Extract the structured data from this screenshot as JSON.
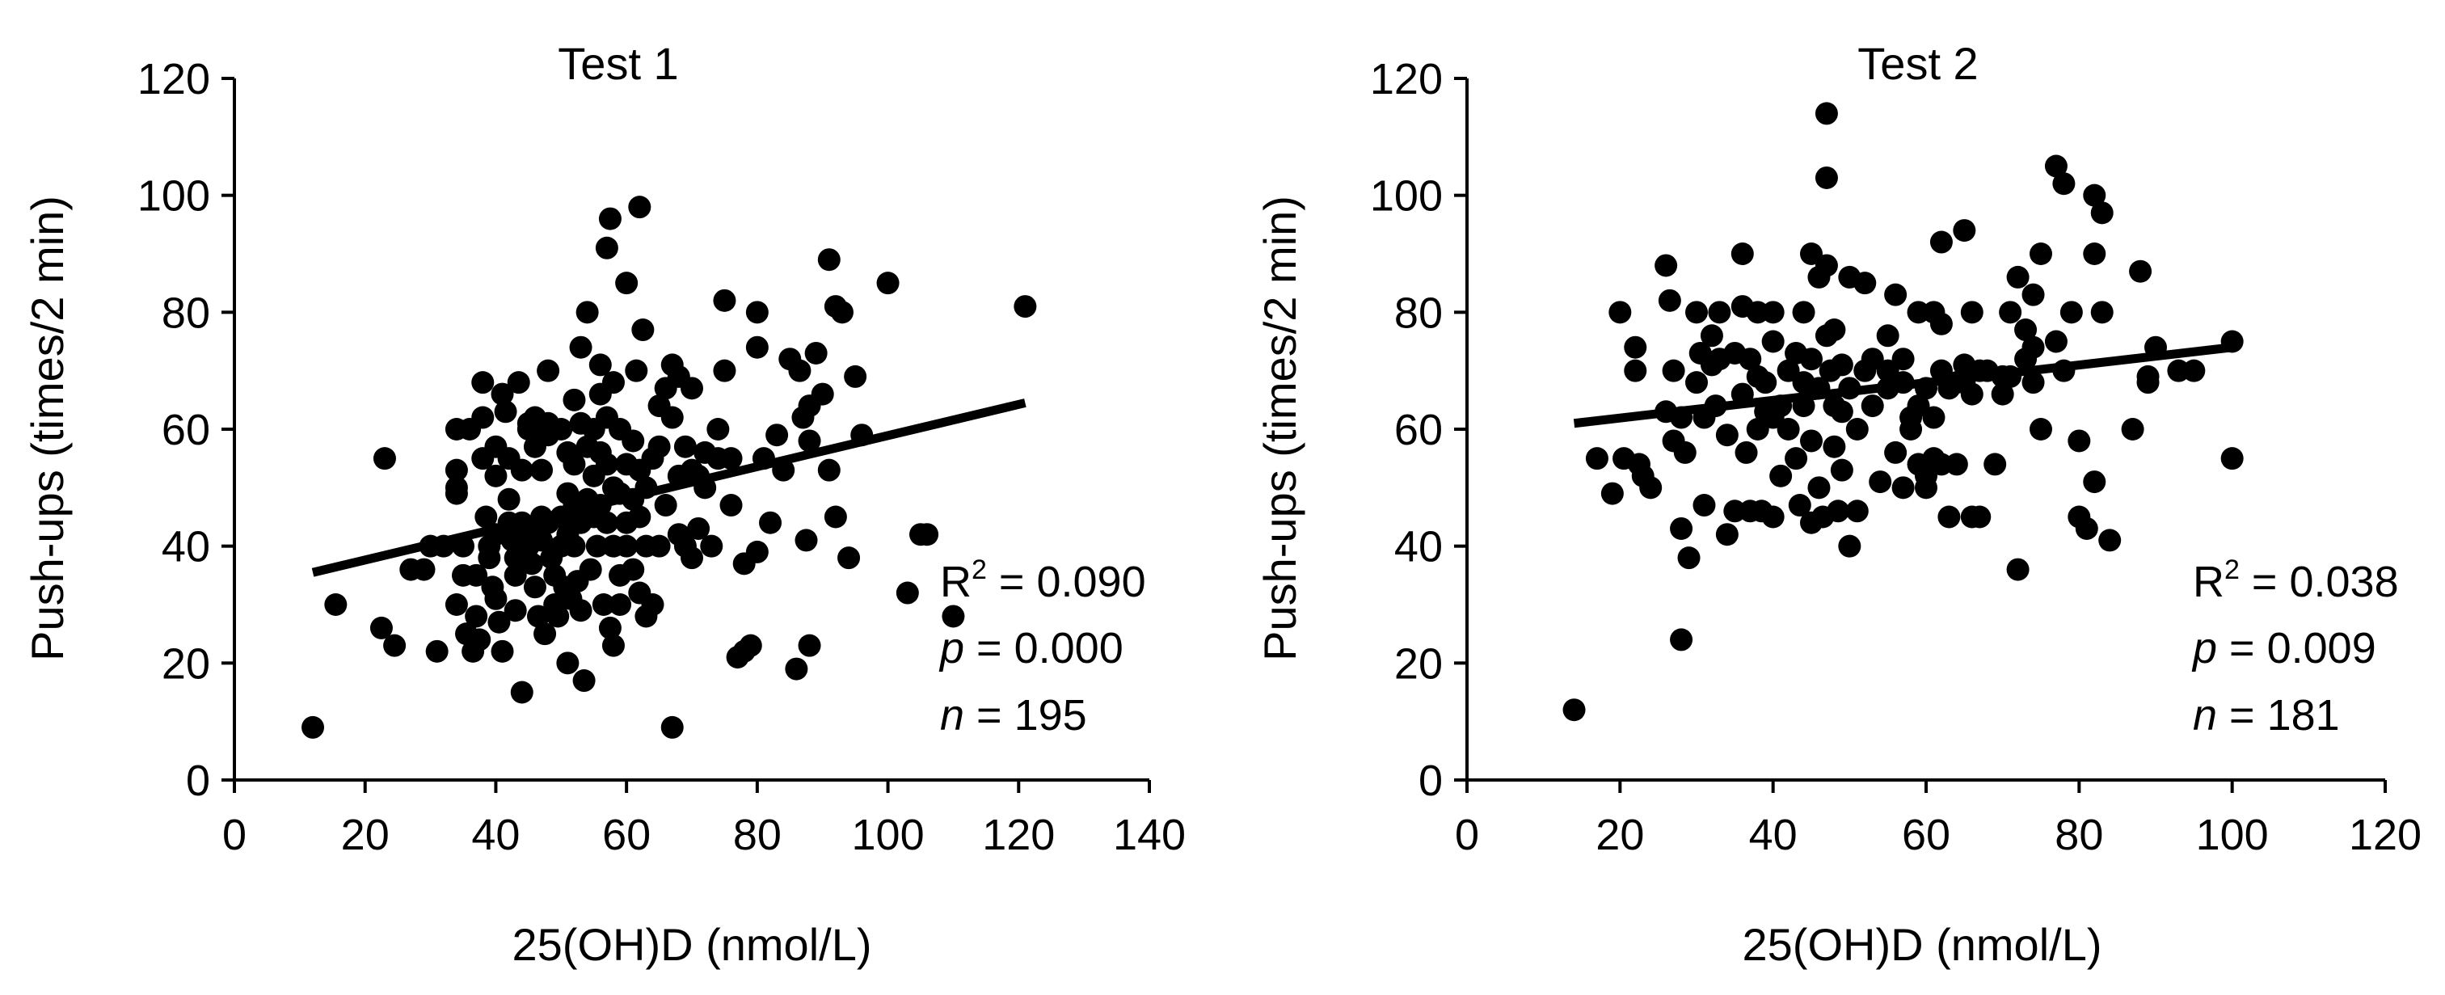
{
  "chart_data": [
    {
      "type": "scatter",
      "title": "Test 1",
      "xlabel": "25(OH)D (nmol/L)",
      "ylabel": "Push-ups (times/2 min)",
      "xlim": [
        0,
        140
      ],
      "ylim": [
        0,
        120
      ],
      "xticks": [
        0,
        20,
        40,
        60,
        80,
        100,
        120,
        140
      ],
      "yticks": [
        0,
        20,
        40,
        60,
        80,
        100,
        120
      ],
      "xtick_labels": [
        "0",
        "20",
        "40",
        "60",
        "80",
        "100",
        "120",
        "140"
      ],
      "ytick_labels": [
        "0",
        "20",
        "40",
        "60",
        "80",
        "100",
        "120"
      ],
      "trendline": {
        "x": [
          12,
          121
        ],
        "y": [
          35.5,
          64.5
        ]
      },
      "stats": {
        "r2_label": "R",
        "r2_sup": "2",
        "r2_value": " = 0.090",
        "p_label": "p",
        "p_value": " = 0.000",
        "n_label": "n",
        "n_value": " = 195"
      },
      "points": [
        [
          12,
          9
        ],
        [
          15.5,
          30
        ],
        [
          23,
          55
        ],
        [
          22.5,
          26
        ],
        [
          24.5,
          23
        ],
        [
          27,
          36
        ],
        [
          29,
          36
        ],
        [
          30,
          40
        ],
        [
          31,
          22
        ],
        [
          32,
          40
        ],
        [
          34,
          60
        ],
        [
          34,
          53
        ],
        [
          34,
          50
        ],
        [
          34,
          49
        ],
        [
          34,
          30
        ],
        [
          35,
          40
        ],
        [
          35,
          35
        ],
        [
          35.5,
          25
        ],
        [
          36,
          60
        ],
        [
          36.5,
          22
        ],
        [
          37,
          35
        ],
        [
          37,
          28
        ],
        [
          37.5,
          24
        ],
        [
          38,
          68
        ],
        [
          38,
          62
        ],
        [
          38,
          55
        ],
        [
          38.5,
          45
        ],
        [
          39,
          40
        ],
        [
          39,
          38
        ],
        [
          39.5,
          33
        ],
        [
          40,
          57
        ],
        [
          40,
          52
        ],
        [
          40,
          42
        ],
        [
          40,
          31
        ],
        [
          40.5,
          27
        ],
        [
          41,
          22
        ],
        [
          41,
          66
        ],
        [
          41.5,
          63
        ],
        [
          42,
          55
        ],
        [
          42,
          48
        ],
        [
          42,
          44
        ],
        [
          42.5,
          41
        ],
        [
          43,
          38
        ],
        [
          43,
          35
        ],
        [
          43,
          29
        ],
        [
          43.5,
          68
        ],
        [
          44,
          53
        ],
        [
          44,
          44
        ],
        [
          44,
          15
        ],
        [
          45,
          61
        ],
        [
          45,
          60
        ],
        [
          45,
          43
        ],
        [
          45,
          40
        ],
        [
          45.5,
          37
        ],
        [
          46,
          62
        ],
        [
          46,
          57
        ],
        [
          46,
          33
        ],
        [
          46.5,
          28
        ],
        [
          47,
          53
        ],
        [
          47,
          45
        ],
        [
          47,
          41
        ],
        [
          47.5,
          25
        ],
        [
          48,
          70
        ],
        [
          48,
          61
        ],
        [
          48,
          59
        ],
        [
          48,
          44
        ],
        [
          48.5,
          38
        ],
        [
          49,
          35
        ],
        [
          49,
          30
        ],
        [
          49.5,
          28
        ],
        [
          50,
          60
        ],
        [
          50,
          45
        ],
        [
          50,
          40
        ],
        [
          50.5,
          33
        ],
        [
          51,
          56
        ],
        [
          51,
          49
        ],
        [
          51,
          42
        ],
        [
          51,
          20
        ],
        [
          51.5,
          31
        ],
        [
          52,
          65
        ],
        [
          52,
          54
        ],
        [
          52,
          47
        ],
        [
          52,
          40
        ],
        [
          52.5,
          34
        ],
        [
          53,
          74
        ],
        [
          53,
          61
        ],
        [
          53,
          44
        ],
        [
          53,
          29
        ],
        [
          53.5,
          17
        ],
        [
          54,
          80
        ],
        [
          54,
          57
        ],
        [
          54,
          48
        ],
        [
          54.5,
          36
        ],
        [
          55,
          60
        ],
        [
          55,
          52
        ],
        [
          55,
          45
        ],
        [
          55.5,
          40
        ],
        [
          56,
          66
        ],
        [
          56,
          71
        ],
        [
          56,
          56
        ],
        [
          56,
          47
        ],
        [
          56.5,
          30
        ],
        [
          57,
          91
        ],
        [
          57,
          62
        ],
        [
          57,
          54
        ],
        [
          57,
          44
        ],
        [
          57.5,
          96
        ],
        [
          57.5,
          26
        ],
        [
          58,
          68
        ],
        [
          58,
          50
        ],
        [
          58,
          40
        ],
        [
          58,
          23
        ],
        [
          59,
          60
        ],
        [
          59,
          49
        ],
        [
          59,
          35
        ],
        [
          59,
          30
        ],
        [
          60,
          85
        ],
        [
          60,
          54
        ],
        [
          60,
          44
        ],
        [
          60,
          40
        ],
        [
          61,
          58
        ],
        [
          61,
          48
        ],
        [
          61,
          36
        ],
        [
          61.5,
          70
        ],
        [
          62,
          98
        ],
        [
          62,
          53
        ],
        [
          62,
          45
        ],
        [
          62,
          32
        ],
        [
          62.5,
          77
        ],
        [
          63,
          50
        ],
        [
          63,
          40
        ],
        [
          63,
          28
        ],
        [
          64,
          55
        ],
        [
          64,
          30
        ],
        [
          65,
          64
        ],
        [
          65,
          57
        ],
        [
          65,
          40
        ],
        [
          66,
          67
        ],
        [
          66,
          47
        ],
        [
          67,
          71
        ],
        [
          67,
          62
        ],
        [
          67,
          9
        ],
        [
          68,
          69
        ],
        [
          68,
          52
        ],
        [
          68,
          42
        ],
        [
          69,
          57
        ],
        [
          69,
          40
        ],
        [
          70,
          53
        ],
        [
          70,
          67
        ],
        [
          70,
          38
        ],
        [
          71,
          52
        ],
        [
          71,
          43
        ],
        [
          72,
          56
        ],
        [
          72,
          50
        ],
        [
          73,
          40
        ],
        [
          74,
          60
        ],
        [
          74,
          55
        ],
        [
          75,
          82
        ],
        [
          75,
          70
        ],
        [
          76,
          55
        ],
        [
          76,
          47
        ],
        [
          77,
          21
        ],
        [
          78,
          37
        ],
        [
          78,
          22
        ],
        [
          79,
          23
        ],
        [
          80,
          80
        ],
        [
          80,
          74
        ],
        [
          80,
          39
        ],
        [
          81,
          55
        ],
        [
          82,
          44
        ],
        [
          83,
          59
        ],
        [
          84,
          53
        ],
        [
          85,
          72
        ],
        [
          86,
          19
        ],
        [
          86.5,
          70
        ],
        [
          87,
          62
        ],
        [
          87.5,
          41
        ],
        [
          88,
          64
        ],
        [
          88,
          58
        ],
        [
          88,
          23
        ],
        [
          89,
          73
        ],
        [
          90,
          66
        ],
        [
          91,
          89
        ],
        [
          91,
          53
        ],
        [
          92,
          45
        ],
        [
          92,
          81
        ],
        [
          93,
          80
        ],
        [
          94,
          38
        ],
        [
          95,
          69
        ],
        [
          96,
          59
        ],
        [
          100,
          85
        ],
        [
          103,
          32
        ],
        [
          105,
          42
        ],
        [
          106,
          42
        ],
        [
          110,
          28
        ],
        [
          121,
          81
        ]
      ]
    },
    {
      "type": "scatter",
      "title": "Test 2",
      "xlabel": "25(OH)D (nmol/L)",
      "ylabel": "Push-ups (times/2 min)",
      "xlim": [
        0,
        120
      ],
      "ylim": [
        0,
        120
      ],
      "xticks": [
        0,
        20,
        40,
        60,
        80,
        100,
        120
      ],
      "yticks": [
        0,
        20,
        40,
        60,
        80,
        100,
        120
      ],
      "xtick_labels": [
        "0",
        "20",
        "40",
        "60",
        "80",
        "100",
        "120"
      ],
      "ytick_labels": [
        "0",
        "20",
        "40",
        "60",
        "80",
        "100",
        "120"
      ],
      "trendline": {
        "x": [
          14,
          100
        ],
        "y": [
          61,
          74
        ]
      },
      "stats": {
        "r2_label": "R",
        "r2_sup": "2",
        "r2_value": " = 0.038",
        "p_label": "p",
        "p_value": " = 0.009",
        "n_label": "n",
        "n_value": " = 181"
      },
      "points": [
        [
          14,
          12
        ],
        [
          17,
          55
        ],
        [
          19,
          49
        ],
        [
          20,
          80
        ],
        [
          20.5,
          55
        ],
        [
          22,
          74
        ],
        [
          22,
          70
        ],
        [
          22.5,
          54
        ],
        [
          23,
          52
        ],
        [
          24,
          50
        ],
        [
          26,
          63
        ],
        [
          26,
          88
        ],
        [
          26.5,
          82
        ],
        [
          27,
          70
        ],
        [
          27,
          58
        ],
        [
          28,
          62
        ],
        [
          28,
          43
        ],
        [
          28,
          24
        ],
        [
          28.5,
          56
        ],
        [
          29,
          38
        ],
        [
          30,
          80
        ],
        [
          30,
          68
        ],
        [
          30.5,
          73
        ],
        [
          31,
          62
        ],
        [
          31,
          47
        ],
        [
          32,
          76
        ],
        [
          32,
          71
        ],
        [
          32.5,
          64
        ],
        [
          33,
          80
        ],
        [
          33,
          72
        ],
        [
          34,
          42
        ],
        [
          34,
          59
        ],
        [
          35,
          73
        ],
        [
          35,
          46
        ],
        [
          36,
          90
        ],
        [
          36,
          81
        ],
        [
          36,
          66
        ],
        [
          36.5,
          56
        ],
        [
          37,
          72
        ],
        [
          37,
          46
        ],
        [
          38,
          80
        ],
        [
          38,
          69
        ],
        [
          38,
          60
        ],
        [
          38.5,
          46
        ],
        [
          39,
          68
        ],
        [
          39,
          63
        ],
        [
          40,
          80
        ],
        [
          40,
          75
        ],
        [
          40,
          62
        ],
        [
          40,
          45
        ],
        [
          41,
          64
        ],
        [
          41,
          52
        ],
        [
          42,
          70
        ],
        [
          42,
          60
        ],
        [
          43,
          73
        ],
        [
          43,
          55
        ],
        [
          43.5,
          47
        ],
        [
          44,
          80
        ],
        [
          44,
          68
        ],
        [
          44,
          64
        ],
        [
          45,
          90
        ],
        [
          45,
          72
        ],
        [
          45,
          58
        ],
        [
          45,
          44
        ],
        [
          46,
          86
        ],
        [
          46,
          67
        ],
        [
          46,
          50
        ],
        [
          46.5,
          45
        ],
        [
          47,
          114
        ],
        [
          47,
          103
        ],
        [
          47,
          88
        ],
        [
          47,
          76
        ],
        [
          47.5,
          70
        ],
        [
          48,
          77
        ],
        [
          48,
          64
        ],
        [
          48,
          57
        ],
        [
          48.5,
          46
        ],
        [
          49,
          71
        ],
        [
          49,
          63
        ],
        [
          49,
          53
        ],
        [
          50,
          86
        ],
        [
          50,
          67
        ],
        [
          50,
          40
        ],
        [
          51,
          60
        ],
        [
          51,
          46
        ],
        [
          52,
          85
        ],
        [
          52,
          70
        ],
        [
          53,
          72
        ],
        [
          53,
          64
        ],
        [
          54,
          51
        ],
        [
          55,
          76
        ],
        [
          55,
          70
        ],
        [
          55,
          67
        ],
        [
          56,
          83
        ],
        [
          56,
          56
        ],
        [
          57,
          72
        ],
        [
          57,
          68
        ],
        [
          57,
          50
        ],
        [
          58,
          62
        ],
        [
          58,
          60
        ],
        [
          59,
          80
        ],
        [
          59,
          64
        ],
        [
          59,
          54
        ],
        [
          60,
          67
        ],
        [
          60,
          52
        ],
        [
          60,
          50
        ],
        [
          61,
          80
        ],
        [
          61,
          62
        ],
        [
          61,
          55
        ],
        [
          62,
          92
        ],
        [
          62,
          78
        ],
        [
          62,
          70
        ],
        [
          62,
          54
        ],
        [
          63,
          67
        ],
        [
          63,
          45
        ],
        [
          64,
          68
        ],
        [
          64,
          54
        ],
        [
          65,
          94
        ],
        [
          65,
          71
        ],
        [
          65,
          68
        ],
        [
          66,
          80
        ],
        [
          66,
          66
        ],
        [
          66,
          45
        ],
        [
          67,
          70
        ],
        [
          67,
          45
        ],
        [
          68,
          70
        ],
        [
          69,
          54
        ],
        [
          70,
          69
        ],
        [
          70,
          66
        ],
        [
          71,
          80
        ],
        [
          71,
          69
        ],
        [
          72,
          86
        ],
        [
          72,
          36
        ],
        [
          73,
          77
        ],
        [
          73,
          72
        ],
        [
          74,
          83
        ],
        [
          74,
          74
        ],
        [
          74,
          68
        ],
        [
          75,
          90
        ],
        [
          75,
          60
        ],
        [
          77,
          105
        ],
        [
          77,
          75
        ],
        [
          78,
          102
        ],
        [
          78,
          70
        ],
        [
          79,
          80
        ],
        [
          80,
          58
        ],
        [
          80,
          45
        ],
        [
          81,
          43
        ],
        [
          82,
          90
        ],
        [
          82,
          51
        ],
        [
          82,
          100
        ],
        [
          83,
          97
        ],
        [
          83,
          80
        ],
        [
          84,
          41
        ],
        [
          87,
          60
        ],
        [
          88,
          87
        ],
        [
          89,
          68
        ],
        [
          89,
          69
        ],
        [
          90,
          74
        ],
        [
          93,
          70
        ],
        [
          95,
          70
        ],
        [
          100,
          75
        ],
        [
          100,
          55
        ]
      ]
    }
  ]
}
